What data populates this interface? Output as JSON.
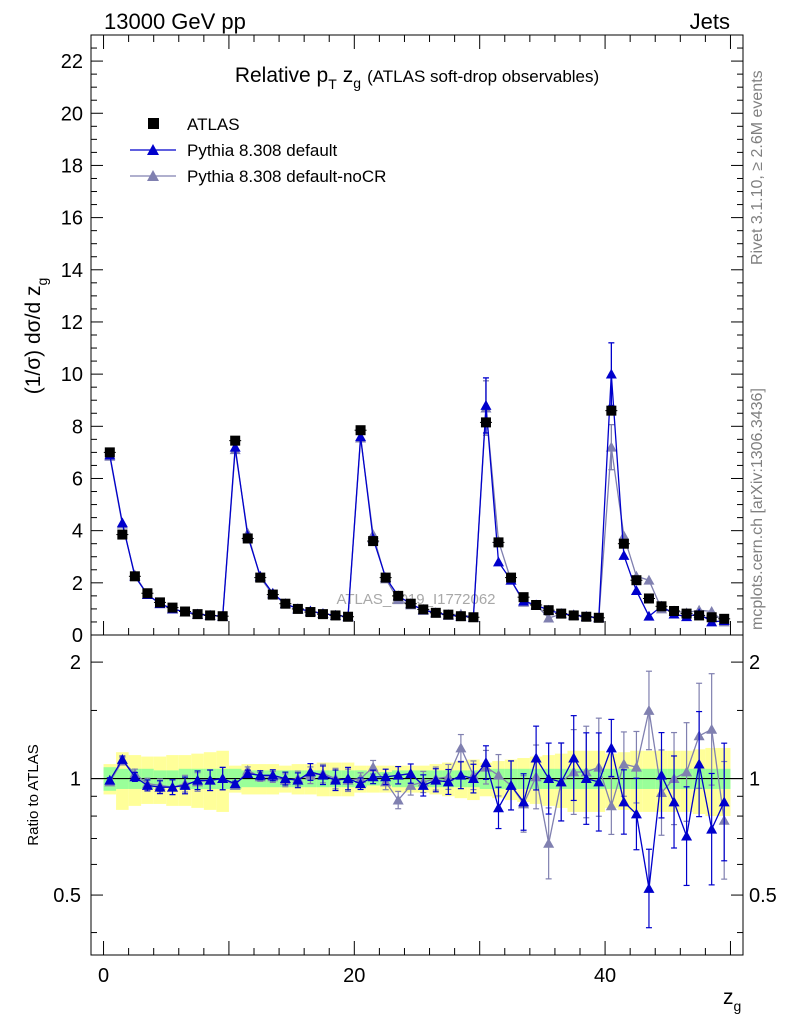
{
  "header": {
    "left": "13000 GeV pp",
    "right": "Jets"
  },
  "side": {
    "rivet": "Rivet 3.1.10, ≥ 2.6M events",
    "mcplots": "mcplots.cern.ch [arXiv:1306.3436]"
  },
  "colors": {
    "atlas": "#000000",
    "default": "#0000cc",
    "noCR": "#8080b0",
    "band_inner": "#99ff99",
    "band_outer": "#ffff99"
  },
  "chart_data": [
    {
      "type": "line",
      "title": "Relative pT zg (ATLAS soft-drop observables)",
      "title_main": "Relative p",
      "title_sub_T": "T",
      "title_z": "z",
      "title_sub_g": "g",
      "title_rest": "(ATLAS soft-drop observables)",
      "watermark": "ATLAS_2019_I1772062",
      "ylabel": "(1/σ) dσ/d z",
      "ylabel_sub": "g",
      "xlim": [
        -1,
        51
      ],
      "ylim": [
        0,
        23
      ],
      "yticks": [
        0,
        2,
        4,
        6,
        8,
        10,
        12,
        14,
        16,
        18,
        20,
        22
      ],
      "x": [
        0.5,
        1.5,
        2.5,
        3.5,
        4.5,
        5.5,
        6.5,
        7.5,
        8.5,
        9.5,
        10.5,
        11.5,
        12.5,
        13.5,
        14.5,
        15.5,
        16.5,
        17.5,
        18.5,
        19.5,
        20.5,
        21.5,
        22.5,
        23.5,
        24.5,
        25.5,
        26.5,
        27.5,
        28.5,
        29.5,
        30.5,
        31.5,
        32.5,
        33.5,
        34.5,
        35.5,
        36.5,
        37.5,
        38.5,
        39.5,
        40.5,
        41.5,
        42.5,
        43.5,
        44.5,
        45.5,
        46.5,
        47.5,
        48.5,
        49.5
      ],
      "series": [
        {
          "name": "ATLAS",
          "marker": "square",
          "values": [
            7.0,
            3.85,
            2.25,
            1.6,
            1.25,
            1.05,
            0.9,
            0.8,
            0.75,
            0.72,
            7.45,
            3.7,
            2.2,
            1.55,
            1.2,
            1.0,
            0.88,
            0.8,
            0.75,
            0.7,
            7.85,
            3.6,
            2.2,
            1.5,
            1.2,
            0.98,
            0.85,
            0.78,
            0.72,
            0.68,
            8.15,
            3.55,
            2.2,
            1.45,
            1.15,
            0.95,
            0.82,
            0.75,
            0.7,
            0.66,
            8.6,
            3.5,
            2.1,
            1.4,
            1.1,
            0.92,
            0.82,
            0.75,
            0.68,
            0.62
          ]
        },
        {
          "name": "Pythia 8.308 default",
          "marker": "triangle",
          "values": [
            6.9,
            4.3,
            2.25,
            1.55,
            1.2,
            1.0,
            0.88,
            0.8,
            0.75,
            0.72,
            7.2,
            3.8,
            2.25,
            1.6,
            1.2,
            1.0,
            0.92,
            0.82,
            0.75,
            0.7,
            7.6,
            3.7,
            2.2,
            1.5,
            1.2,
            0.95,
            0.85,
            0.76,
            0.72,
            0.68,
            8.8,
            2.8,
            2.1,
            1.3,
            1.15,
            0.95,
            0.82,
            0.75,
            0.7,
            0.66,
            10.0,
            3.05,
            1.7,
            0.72,
            1.1,
            0.8,
            0.7,
            0.82,
            0.5,
            0.55
          ]
        },
        {
          "name": "Pythia 8.308 default-noCR",
          "marker": "triangle",
          "values": [
            6.85,
            4.25,
            2.3,
            1.55,
            1.2,
            1.0,
            0.88,
            0.78,
            0.75,
            0.72,
            7.1,
            3.9,
            2.2,
            1.55,
            1.2,
            1.0,
            0.9,
            0.82,
            0.75,
            0.7,
            7.55,
            3.85,
            2.15,
            1.35,
            1.15,
            0.98,
            0.85,
            0.78,
            0.8,
            0.68,
            8.7,
            3.6,
            2.1,
            1.25,
            1.15,
            0.65,
            0.8,
            0.78,
            0.72,
            0.66,
            7.2,
            3.8,
            2.25,
            2.1,
            1.0,
            0.92,
            0.85,
            0.95,
            0.9,
            0.5
          ]
        }
      ]
    },
    {
      "type": "line",
      "ylabel": "Ratio to ATLAS",
      "xlabel": "z",
      "xlabel_sub": "g",
      "xlim": [
        -1,
        51
      ],
      "ylim": [
        0.35,
        2.35
      ],
      "yticks": [
        0.5,
        1,
        2
      ],
      "xticks": [
        0,
        20,
        40
      ],
      "series": [
        {
          "name": "Pythia 8.308 default",
          "values": [
            0.99,
            1.12,
            1.01,
            0.96,
            0.95,
            0.95,
            0.96,
            0.99,
            0.99,
            1.0,
            0.97,
            1.03,
            1.02,
            1.02,
            1.0,
            0.99,
            1.04,
            1.02,
            0.99,
            1.0,
            0.97,
            1.01,
            1.01,
            1.02,
            1.03,
            0.96,
            0.99,
            0.98,
            1.02,
            1.0,
            1.1,
            0.84,
            0.96,
            0.87,
            1.13,
            1.0,
            0.98,
            1.13,
            1.0,
            0.98,
            1.2,
            0.87,
            0.81,
            0.52,
            1.02,
            0.87,
            0.71,
            1.09,
            0.74,
            0.87
          ]
        },
        {
          "name": "Pythia 8.308 default-noCR",
          "values": [
            0.98,
            1.11,
            1.03,
            0.97,
            0.96,
            0.95,
            0.97,
            0.98,
            0.99,
            1.0,
            0.96,
            1.05,
            1.01,
            1.01,
            0.99,
            1.0,
            1.02,
            1.03,
            1.0,
            0.99,
            1.0,
            1.07,
            0.98,
            0.88,
            0.96,
            0.98,
            1.0,
            1.01,
            1.2,
            1.02,
            1.07,
            1.02,
            0.96,
            0.86,
            1.01,
            0.68,
            0.98,
            1.04,
            1.04,
            1.07,
            0.85,
            1.09,
            1.07,
            1.5,
            0.92,
            1.0,
            1.04,
            1.29,
            1.34,
            0.78
          ]
        }
      ],
      "band_inner_halfwidth": [
        0.07,
        0.06,
        0.06,
        0.06,
        0.05,
        0.05,
        0.06,
        0.06,
        0.06,
        0.06,
        0.06,
        0.05,
        0.05,
        0.05,
        0.05,
        0.05,
        0.05,
        0.05,
        0.05,
        0.05,
        0.05,
        0.04,
        0.04,
        0.05,
        0.05,
        0.05,
        0.05,
        0.05,
        0.05,
        0.05,
        0.06,
        0.06,
        0.06,
        0.06,
        0.06,
        0.06,
        0.06,
        0.06,
        0.06,
        0.06,
        0.06,
        0.06,
        0.06,
        0.06,
        0.06,
        0.06,
        0.06,
        0.06,
        0.06,
        0.06
      ],
      "band_outer_halfwidth": [
        0.09,
        0.17,
        0.15,
        0.14,
        0.14,
        0.15,
        0.15,
        0.16,
        0.17,
        0.18,
        0.08,
        0.09,
        0.09,
        0.09,
        0.08,
        0.09,
        0.09,
        0.1,
        0.1,
        0.1,
        0.08,
        0.08,
        0.08,
        0.08,
        0.08,
        0.08,
        0.09,
        0.1,
        0.11,
        0.12,
        0.1,
        0.11,
        0.12,
        0.13,
        0.14,
        0.15,
        0.16,
        0.18,
        0.18,
        0.18,
        0.16,
        0.17,
        0.18,
        0.18,
        0.18,
        0.18,
        0.18,
        0.19,
        0.2,
        0.2
      ]
    }
  ]
}
